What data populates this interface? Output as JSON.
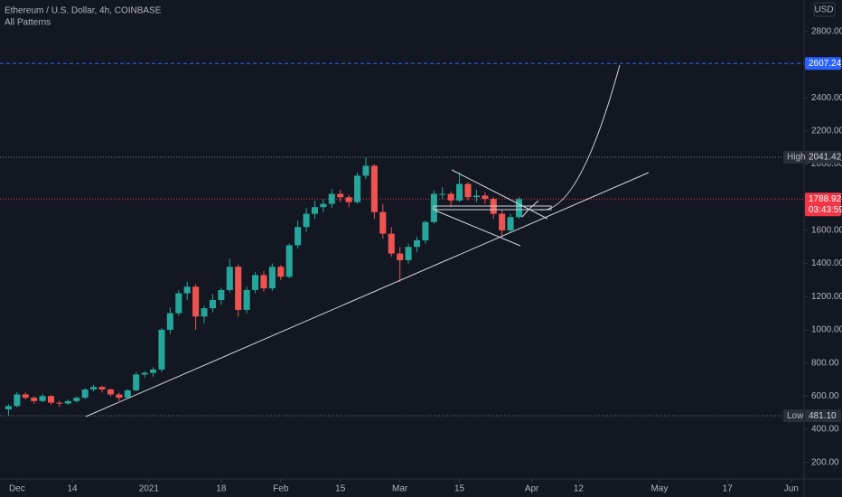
{
  "chart_data": {
    "type": "candlestick",
    "title": "Ethereum / U.S. Dollar, 4h, COINBASE",
    "subtitle": "All Patterns",
    "currency": "USD",
    "countdown": "03:43:59",
    "up_color": "#26a69a",
    "down_color": "#ef5350",
    "x": [
      "2020-11-28",
      "2020-11-30",
      "2020-12-02",
      "2020-12-04",
      "2020-12-06",
      "2020-12-08",
      "2020-12-10",
      "2020-12-12",
      "2020-12-14",
      "2020-12-16",
      "2020-12-18",
      "2020-12-20",
      "2020-12-22",
      "2020-12-24",
      "2020-12-26",
      "2020-12-28",
      "2020-12-30",
      "2021-01-01",
      "2021-01-03",
      "2021-01-05",
      "2021-01-07",
      "2021-01-09",
      "2021-01-11",
      "2021-01-13",
      "2021-01-15",
      "2021-01-17",
      "2021-01-19",
      "2021-01-21",
      "2021-01-23",
      "2021-01-25",
      "2021-01-27",
      "2021-01-29",
      "2021-01-31",
      "2021-02-02",
      "2021-02-04",
      "2021-02-06",
      "2021-02-08",
      "2021-02-10",
      "2021-02-12",
      "2021-02-14",
      "2021-02-16",
      "2021-02-18",
      "2021-02-20",
      "2021-02-22",
      "2021-02-24",
      "2021-02-26",
      "2021-02-28",
      "2021-03-02",
      "2021-03-04",
      "2021-03-06",
      "2021-03-08",
      "2021-03-10",
      "2021-03-12",
      "2021-03-14",
      "2021-03-16",
      "2021-03-18",
      "2021-03-20",
      "2021-03-22",
      "2021-03-24",
      "2021-03-26",
      "2021-03-28"
    ],
    "ohlc": [
      [
        520,
        552,
        481.1,
        540
      ],
      [
        540,
        625,
        532,
        610
      ],
      [
        610,
        622,
        580,
        590
      ],
      [
        590,
        600,
        555,
        570
      ],
      [
        570,
        612,
        562,
        600
      ],
      [
        600,
        605,
        548,
        560
      ],
      [
        560,
        572,
        535,
        555
      ],
      [
        555,
        580,
        548,
        570
      ],
      [
        570,
        598,
        560,
        590
      ],
      [
        590,
        648,
        582,
        640
      ],
      [
        640,
        668,
        628,
        655
      ],
      [
        655,
        662,
        622,
        640
      ],
      [
        640,
        646,
        598,
        610
      ],
      [
        610,
        620,
        570,
        590
      ],
      [
        590,
        642,
        585,
        635
      ],
      [
        635,
        745,
        628,
        730
      ],
      [
        730,
        752,
        712,
        740
      ],
      [
        740,
        775,
        715,
        760
      ],
      [
        760,
        1010,
        745,
        1000
      ],
      [
        1000,
        1135,
        975,
        1100
      ],
      [
        1100,
        1240,
        1085,
        1220
      ],
      [
        1220,
        1290,
        1180,
        1260
      ],
      [
        1260,
        1275,
        1000,
        1080
      ],
      [
        1080,
        1145,
        1040,
        1130
      ],
      [
        1130,
        1215,
        1105,
        1180
      ],
      [
        1180,
        1255,
        1150,
        1240
      ],
      [
        1240,
        1430,
        1225,
        1380
      ],
      [
        1380,
        1395,
        1080,
        1120
      ],
      [
        1120,
        1260,
        1100,
        1240
      ],
      [
        1240,
        1350,
        1220,
        1330
      ],
      [
        1330,
        1355,
        1230,
        1250
      ],
      [
        1250,
        1400,
        1235,
        1380
      ],
      [
        1380,
        1390,
        1300,
        1320
      ],
      [
        1320,
        1520,
        1310,
        1510
      ],
      [
        1510,
        1660,
        1490,
        1620
      ],
      [
        1620,
        1735,
        1590,
        1700
      ],
      [
        1700,
        1780,
        1670,
        1740
      ],
      [
        1740,
        1790,
        1710,
        1760
      ],
      [
        1760,
        1850,
        1735,
        1820
      ],
      [
        1820,
        1845,
        1770,
        1800
      ],
      [
        1800,
        1815,
        1740,
        1770
      ],
      [
        1770,
        1950,
        1760,
        1930
      ],
      [
        1930,
        2041.42,
        1910,
        1990
      ],
      [
        1990,
        2000,
        1670,
        1710
      ],
      [
        1710,
        1760,
        1550,
        1580
      ],
      [
        1580,
        1620,
        1440,
        1460
      ],
      [
        1460,
        1500,
        1290,
        1420
      ],
      [
        1420,
        1520,
        1400,
        1500
      ],
      [
        1500,
        1560,
        1470,
        1540
      ],
      [
        1540,
        1660,
        1520,
        1650
      ],
      [
        1650,
        1840,
        1640,
        1820
      ],
      [
        1820,
        1860,
        1790,
        1820
      ],
      [
        1820,
        1835,
        1740,
        1780
      ],
      [
        1780,
        1950,
        1770,
        1880
      ],
      [
        1880,
        1890,
        1780,
        1800
      ],
      [
        1800,
        1845,
        1770,
        1810
      ],
      [
        1810,
        1830,
        1760,
        1790
      ],
      [
        1790,
        1800,
        1670,
        1700
      ],
      [
        1700,
        1720,
        1560,
        1600
      ],
      [
        1600,
        1700,
        1585,
        1680
      ],
      [
        1680,
        1800,
        1670,
        1789
      ]
    ],
    "ylim": [
      100,
      2990
    ],
    "yticks": [
      {
        "value": 200,
        "label": "200.00"
      },
      {
        "value": 400,
        "label": "400.00"
      },
      {
        "value": 600,
        "label": "600.00"
      },
      {
        "value": 800,
        "label": "800.00"
      },
      {
        "value": 1000,
        "label": "1000.00"
      },
      {
        "value": 1200,
        "label": "1200.00"
      },
      {
        "value": 1400,
        "label": "1400.00"
      },
      {
        "value": 1600,
        "label": "1600.00"
      },
      {
        "value": 1800,
        "label": "1800.00"
      },
      {
        "value": 2000,
        "label": "2000.00"
      },
      {
        "value": 2200,
        "label": "2200.00"
      },
      {
        "value": 2400,
        "label": "2400.00"
      },
      {
        "value": 2600,
        "label": "2600.00"
      },
      {
        "value": 2800,
        "label": "2800.00"
      }
    ],
    "xlim": [
      "2020-11-27",
      "2021-06-04"
    ],
    "xticks": [
      {
        "value": "2020-12-01",
        "label": "Dec"
      },
      {
        "value": "2020-12-14",
        "label": "14"
      },
      {
        "value": "2021-01-01",
        "label": "2021"
      },
      {
        "value": "2021-01-18",
        "label": "18"
      },
      {
        "value": "2021-02-01",
        "label": "Feb"
      },
      {
        "value": "2021-02-15",
        "label": "15"
      },
      {
        "value": "2021-03-01",
        "label": "Mar"
      },
      {
        "value": "2021-03-15",
        "label": "15"
      },
      {
        "value": "2021-04-01",
        "label": "Apr"
      },
      {
        "value": "2021-04-12",
        "label": "12"
      },
      {
        "value": "2021-05-01",
        "label": "May"
      },
      {
        "value": "2021-05-17",
        "label": "17"
      },
      {
        "value": "2021-06-01",
        "label": "Jun"
      }
    ],
    "levels": [
      {
        "name": "High",
        "price": 2041.42,
        "color": "#787b86"
      },
      {
        "name": "Low",
        "price": 481.1,
        "price_label": "481.10",
        "color": "#787b86"
      }
    ],
    "alert": {
      "price": 2607.24,
      "color": "#2962ff"
    },
    "last": {
      "price": 1788.92,
      "color": "#f23645"
    }
  }
}
